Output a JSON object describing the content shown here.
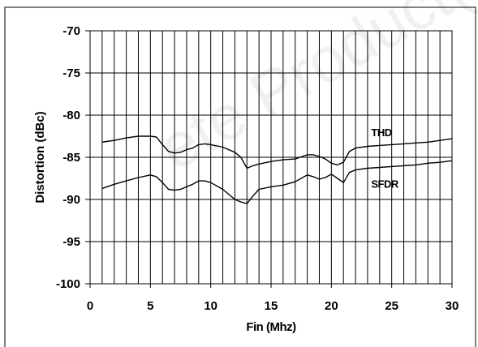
{
  "chart_data": {
    "type": "line",
    "xlabel": "Fin (Mhz)",
    "ylabel": "Distortion (dBc)",
    "xlim": [
      0,
      30
    ],
    "ylim": [
      -100,
      -70
    ],
    "x_ticks": [
      0,
      5,
      10,
      15,
      20,
      25,
      30
    ],
    "y_ticks": [
      -70,
      -75,
      -80,
      -85,
      -90,
      -95,
      -100
    ],
    "grid": "vertical lines every 1 MHz, horizontal lines every 5 dBc",
    "series": [
      {
        "name": "THD",
        "label_at": [
          23.3,
          -82.5
        ],
        "points": [
          [
            1,
            -83.2
          ],
          [
            2,
            -83.0
          ],
          [
            3,
            -82.7
          ],
          [
            4,
            -82.5
          ],
          [
            5,
            -82.5
          ],
          [
            5.5,
            -82.6
          ],
          [
            6,
            -83.5
          ],
          [
            6.5,
            -84.3
          ],
          [
            7,
            -84.5
          ],
          [
            7.5,
            -84.4
          ],
          [
            8,
            -84.1
          ],
          [
            8.5,
            -83.9
          ],
          [
            9,
            -83.5
          ],
          [
            9.5,
            -83.4
          ],
          [
            10,
            -83.5
          ],
          [
            11,
            -83.8
          ],
          [
            12,
            -84.4
          ],
          [
            12.5,
            -85.0
          ],
          [
            13,
            -86.3
          ],
          [
            13.5,
            -86.0
          ],
          [
            14,
            -85.8
          ],
          [
            15,
            -85.5
          ],
          [
            16,
            -85.3
          ],
          [
            17,
            -85.2
          ],
          [
            18,
            -84.7
          ],
          [
            18.5,
            -84.7
          ],
          [
            19,
            -84.9
          ],
          [
            19.5,
            -85.2
          ],
          [
            20,
            -85.7
          ],
          [
            20.5,
            -85.9
          ],
          [
            21,
            -85.6
          ],
          [
            21.5,
            -84.3
          ],
          [
            22,
            -83.9
          ],
          [
            23,
            -83.7
          ],
          [
            24,
            -83.6
          ],
          [
            25,
            -83.5
          ],
          [
            26,
            -83.4
          ],
          [
            27,
            -83.3
          ],
          [
            28,
            -83.2
          ],
          [
            29,
            -83.0
          ],
          [
            30,
            -82.8
          ]
        ]
      },
      {
        "name": "SFDR",
        "label_at": [
          23.3,
          -88.6
        ],
        "points": [
          [
            1,
            -88.7
          ],
          [
            2,
            -88.2
          ],
          [
            3,
            -87.8
          ],
          [
            4,
            -87.4
          ],
          [
            5,
            -87.1
          ],
          [
            5.5,
            -87.3
          ],
          [
            6,
            -88.0
          ],
          [
            6.5,
            -88.8
          ],
          [
            7,
            -88.9
          ],
          [
            7.5,
            -88.8
          ],
          [
            8,
            -88.5
          ],
          [
            8.5,
            -88.2
          ],
          [
            9,
            -87.8
          ],
          [
            9.5,
            -87.8
          ],
          [
            10,
            -88.0
          ],
          [
            11,
            -88.8
          ],
          [
            12,
            -90.0
          ],
          [
            12.5,
            -90.3
          ],
          [
            13,
            -90.5
          ],
          [
            13.5,
            -89.6
          ],
          [
            14,
            -88.8
          ],
          [
            15,
            -88.5
          ],
          [
            16,
            -88.3
          ],
          [
            17,
            -87.9
          ],
          [
            17.5,
            -87.5
          ],
          [
            18,
            -87.1
          ],
          [
            18.5,
            -87.3
          ],
          [
            19,
            -87.6
          ],
          [
            19.5,
            -87.4
          ],
          [
            20,
            -87.0
          ],
          [
            20.5,
            -87.5
          ],
          [
            21,
            -88.0
          ],
          [
            21.5,
            -86.8
          ],
          [
            22,
            -86.5
          ],
          [
            23,
            -86.3
          ],
          [
            24,
            -86.2
          ],
          [
            25,
            -86.1
          ],
          [
            26,
            -86.0
          ],
          [
            27,
            -85.9
          ],
          [
            28,
            -85.7
          ],
          [
            29,
            -85.6
          ],
          [
            30,
            -85.4
          ]
        ]
      }
    ]
  },
  "watermark": {
    "text": "ete Product(s",
    "color": "#cccccc"
  }
}
